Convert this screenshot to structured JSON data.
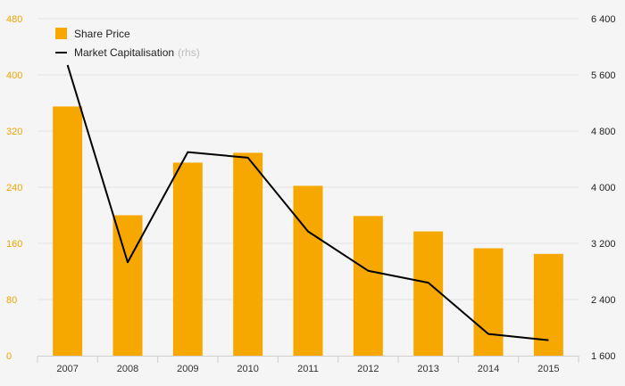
{
  "chart_data": {
    "type": "bar",
    "categories": [
      "2007",
      "2008",
      "2009",
      "2010",
      "2011",
      "2012",
      "2013",
      "2014",
      "2015"
    ],
    "series": [
      {
        "name": "Share Price",
        "kind": "bar",
        "axis": "left",
        "color": "#f7a800",
        "values": [
          355,
          200,
          275,
          289,
          242,
          199,
          177,
          153,
          145
        ]
      },
      {
        "name": "Market Capitalisation",
        "kind": "line",
        "axis": "right",
        "color": "#000000",
        "values": [
          5740,
          2930,
          4500,
          4420,
          3370,
          2810,
          2640,
          1910,
          1820
        ]
      }
    ],
    "ylim_left": [
      0,
      480
    ],
    "yticks_left": [
      "0",
      "80",
      "160",
      "240",
      "320",
      "400",
      "480"
    ],
    "ylim_right": [
      1600,
      6400
    ],
    "yticks_right": [
      "1 600",
      "2 400",
      "3 200",
      "4 000",
      "4 800",
      "5 600",
      "6 400"
    ],
    "legend_rhs_note": "(rhs)",
    "grid": true,
    "legend_position": "top-left"
  }
}
